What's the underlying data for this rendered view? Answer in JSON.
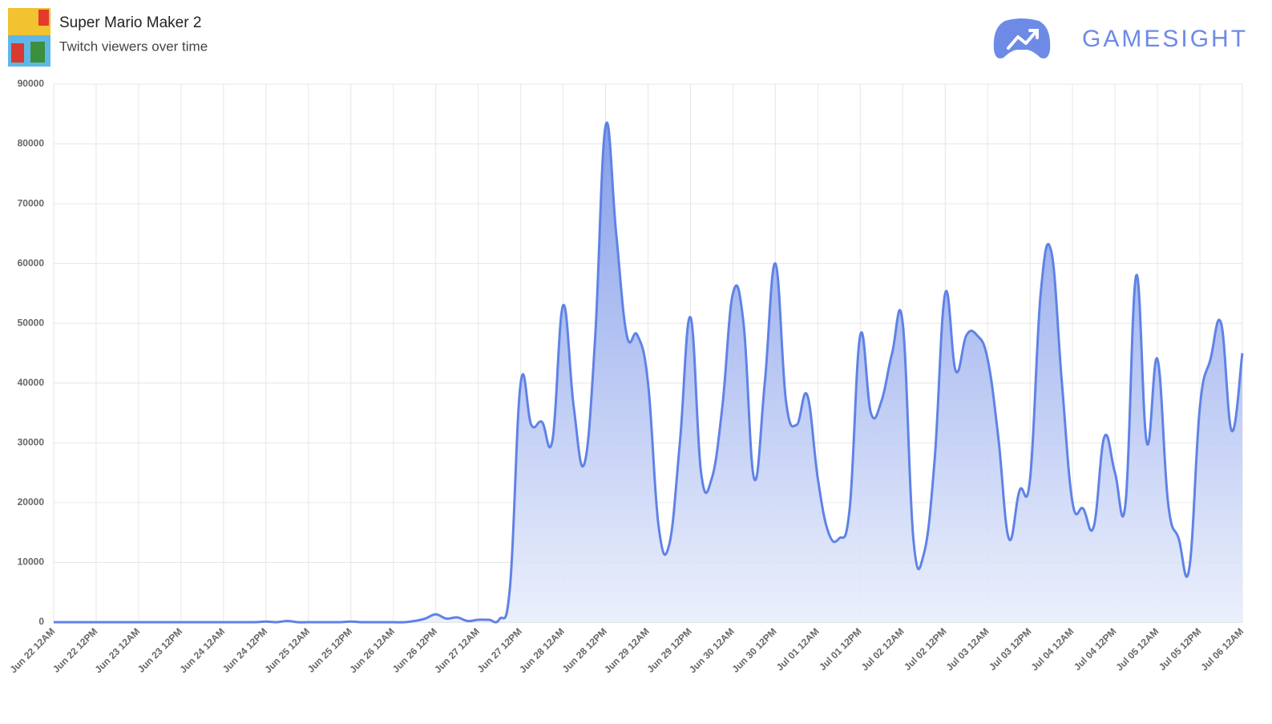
{
  "brand": "GAMESIGHT",
  "chart_data": {
    "type": "area",
    "title": "Super Mario Maker 2",
    "subtitle": "Twitch viewers over time",
    "categories": [
      "Jun 22 12AM",
      null,
      null,
      null,
      "Jun 22 12PM",
      null,
      null,
      null,
      "Jun 23 12AM",
      null,
      null,
      null,
      "Jun 23 12PM",
      null,
      null,
      null,
      "Jun 24 12AM",
      null,
      null,
      null,
      "Jun 24 12PM",
      null,
      null,
      null,
      "Jun 25 12AM",
      null,
      null,
      null,
      "Jun 25 12PM",
      null,
      null,
      null,
      "Jun 26 12AM",
      null,
      null,
      null,
      "Jun 26 12PM",
      null,
      null,
      null,
      "Jun 27 12AM",
      null,
      null,
      null,
      "Jun 27 12PM",
      null,
      null,
      null,
      "Jun 28 12AM",
      null,
      null,
      null,
      "Jun 28 12PM",
      null,
      null,
      null,
      "Jun 29 12AM",
      null,
      null,
      null,
      "Jun 29 12PM",
      null,
      null,
      null,
      "Jun 30 12AM",
      null,
      null,
      null,
      "Jun 30 12PM",
      null,
      null,
      null,
      "Jul 01 12AM",
      null,
      null,
      null,
      "Jul 01 12PM",
      null,
      null,
      null,
      "Jul 02 12AM",
      null,
      null,
      null,
      "Jul 02 12PM",
      null,
      null,
      null,
      "Jul 03 12AM",
      null,
      null,
      null,
      "Jul 03 12PM",
      null,
      null,
      null,
      "Jul 04 12AM",
      null,
      null,
      null,
      "Jul 04 12PM",
      null,
      null,
      null,
      "Jul 05 12AM",
      null,
      null,
      null,
      "Jul 05 12PM",
      null,
      null,
      null,
      "Jul 06 12AM"
    ],
    "values": [
      0,
      0,
      0,
      0,
      0,
      0,
      0,
      0,
      0,
      0,
      0,
      0,
      0,
      0,
      0,
      0,
      0,
      0,
      0,
      0,
      100,
      0,
      200,
      0,
      0,
      0,
      0,
      0,
      100,
      0,
      0,
      0,
      0,
      0,
      200,
      600,
      1300,
      600,
      800,
      200,
      400,
      400,
      500,
      6000,
      40000,
      33000,
      33500,
      30500,
      53000,
      36000,
      26500,
      47000,
      83000,
      65000,
      48000,
      48000,
      40000,
      16000,
      13000,
      30000,
      51000,
      25000,
      24000,
      36000,
      55000,
      50000,
      24000,
      40000,
      60000,
      37000,
      33000,
      38000,
      24000,
      15000,
      14000,
      19000,
      48000,
      35000,
      37000,
      45000,
      50000,
      14000,
      11500,
      27000,
      55000,
      42000,
      48000,
      48000,
      44000,
      31000,
      14000,
      22000,
      24000,
      55000,
      62000,
      40000,
      20000,
      19000,
      16000,
      31000,
      25000,
      20000,
      58000,
      30000,
      44000,
      20000,
      14000,
      9000,
      36000,
      44000,
      50000,
      32000,
      45000
    ],
    "color": "#5f82e6",
    "ylim": [
      0,
      90000
    ],
    "yticks": [
      0,
      10000,
      20000,
      30000,
      40000,
      50000,
      60000,
      70000,
      80000,
      90000
    ],
    "grid": true
  }
}
